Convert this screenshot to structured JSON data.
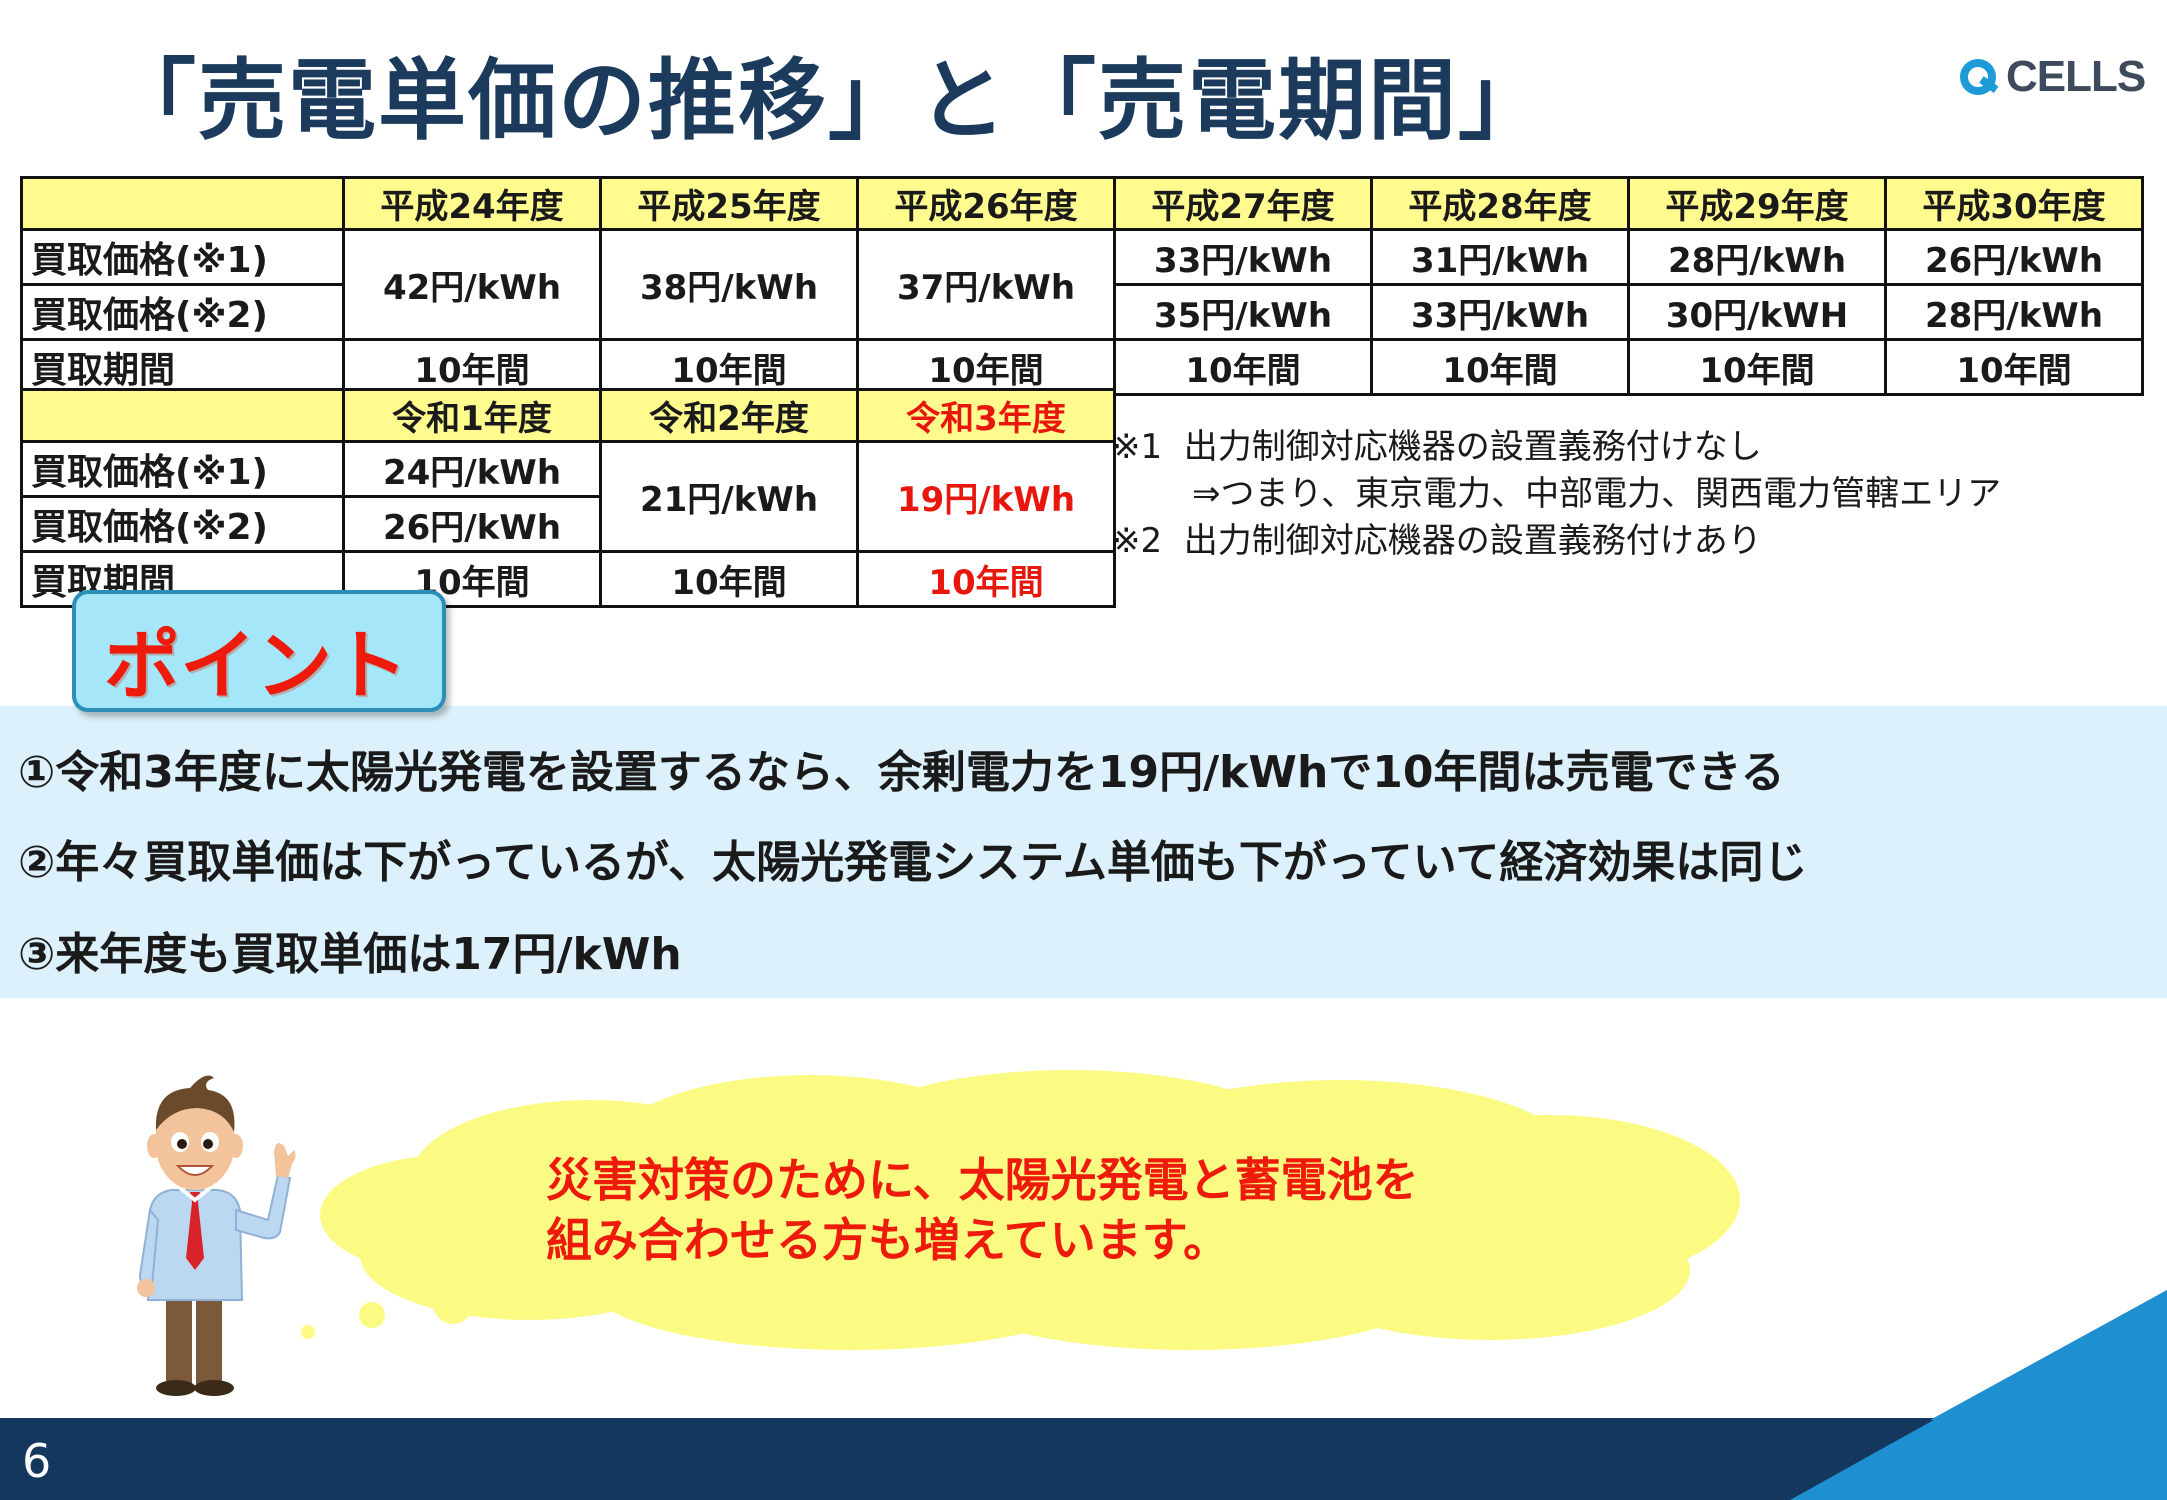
{
  "title": "「売電単価の推移」と「売電期間」",
  "logo": {
    "text": "CELLS"
  },
  "table1": {
    "headers": [
      "平成24年度",
      "平成25年度",
      "平成26年度",
      "平成27年度",
      "平成28年度",
      "平成29年度",
      "平成30年度"
    ],
    "row_labels": [
      "買取価格(※1)",
      "買取価格(※2)",
      "買取期間"
    ],
    "merged_prices": [
      "42円/kWh",
      "38円/kWh",
      "37円/kWh"
    ],
    "price1": [
      "33円/kWh",
      "31円/kWh",
      "28円/kWh",
      "26円/kWh"
    ],
    "price2": [
      "35円/kWh",
      "33円/kWh",
      "30円/kWH",
      "28円/kWh"
    ],
    "period": [
      "10年間",
      "10年間",
      "10年間",
      "10年間",
      "10年間",
      "10年間",
      "10年間"
    ]
  },
  "table2": {
    "headers": [
      "令和1年度",
      "令和2年度",
      "令和3年度"
    ],
    "row_labels": [
      "買取価格(※1)",
      "買取価格(※2)",
      "買取期間"
    ],
    "r1_price1": "24円/kWh",
    "r1_price2": "26円/kWh",
    "r2_price": "21円/kWh",
    "r3_price": "19円/kWh",
    "period": [
      "10年間",
      "10年間",
      "10年間"
    ]
  },
  "notes": {
    "n1_mark": "※1",
    "n1_text": "出力制御対応機器の設置義務付けなし",
    "n1_sub": "⇒つまり、東京電力、中部電力、関西電力管轄エリア",
    "n2_mark": "※2",
    "n2_text": "出力制御対応機器の設置義務付けあり"
  },
  "point": {
    "label": "ポイント",
    "items": [
      "①令和3年度に太陽光発電を設置するなら、余剰電力を19円/kWhで10年間は売電できる",
      "②年々買取単価は下がっているが、太陽光発電システム単価も下がっていて経済効果は同じ",
      "③来年度も買取単価は17円/kWh"
    ]
  },
  "speech": {
    "line1": "災害対策のために、太陽光発電と蓄電池を",
    "line2": "組み合わせる方も増えています。"
  },
  "page_number": "6",
  "colors": {
    "title": "#1b3a5c",
    "header_yellow": "#fffb8e",
    "accent_red": "#e8170e",
    "point_band": "#dcf1fb",
    "point_box": "#a5e6f8",
    "cloud": "#fbfb83",
    "footer": "#14375e",
    "footer_triangle": "#1e8fd0"
  }
}
